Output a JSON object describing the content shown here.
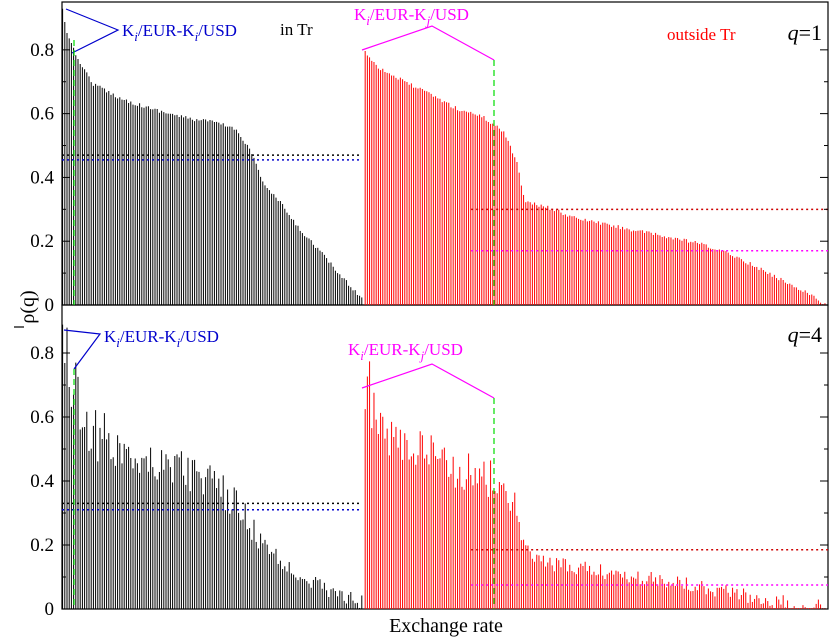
{
  "chart_data": [
    {
      "type": "bar",
      "panel": "top",
      "q_label": {
        "q": "q",
        "rest": "=1"
      },
      "ylabel": "ρ(q)",
      "xlabel": "",
      "ylim": [
        0,
        0.95
      ],
      "yticks": [
        0,
        0.2,
        0.4,
        0.6,
        0.8
      ],
      "ytick_labels": [
        "0",
        "0.2",
        "0.4",
        "0.6",
        "0.8"
      ],
      "series": [
        {
          "name": "in Tr",
          "color": "#000000",
          "x_range": [
            0,
            0.395
          ],
          "profile": [
            [
              0,
              0.93
            ],
            [
              0.02,
              0.84
            ],
            [
              0.05,
              0.78
            ],
            [
              0.1,
              0.7
            ],
            [
              0.2,
              0.65
            ],
            [
              0.3,
              0.62
            ],
            [
              0.42,
              0.59
            ],
            [
              0.5,
              0.58
            ],
            [
              0.57,
              0.56
            ],
            [
              0.62,
              0.5
            ],
            [
              0.67,
              0.38
            ],
            [
              0.72,
              0.33
            ],
            [
              0.78,
              0.25
            ],
            [
              0.85,
              0.18
            ],
            [
              0.92,
              0.1
            ],
            [
              1.0,
              0.02
            ]
          ],
          "mean_lines": [
            {
              "value": 0.47,
              "color": "#000000"
            },
            {
              "value": 0.455,
              "color": "#0000cc"
            }
          ]
        },
        {
          "name": "outside Tr",
          "color": "#ff0000",
          "x_range": [
            0.395,
            1.0
          ],
          "profile": [
            [
              0,
              0.8
            ],
            [
              0.03,
              0.75
            ],
            [
              0.08,
              0.71
            ],
            [
              0.15,
              0.66
            ],
            [
              0.2,
              0.62
            ],
            [
              0.25,
              0.6
            ],
            [
              0.3,
              0.55
            ],
            [
              0.33,
              0.45
            ],
            [
              0.345,
              0.33
            ],
            [
              0.4,
              0.31
            ],
            [
              0.45,
              0.28
            ],
            [
              0.55,
              0.25
            ],
            [
              0.65,
              0.22
            ],
            [
              0.72,
              0.2
            ],
            [
              0.8,
              0.16
            ],
            [
              0.88,
              0.1
            ],
            [
              0.95,
              0.05
            ],
            [
              1.0,
              0.005
            ]
          ],
          "mean_lines": [
            {
              "value": 0.3,
              "color": "#cc0000",
              "from": 0.23
            },
            {
              "value": 0.17,
              "color": "#ff00ff",
              "from": 0.23
            }
          ]
        }
      ],
      "annotations": [
        {
          "id": "blue",
          "text_main": "K",
          "sub1": "i",
          "mid": "/EUR-K",
          "sub2": "i",
          "tail": "/USD",
          "color": "#0000cc"
        },
        {
          "id": "magenta",
          "text_main": "K",
          "sub1": "i",
          "mid": "/EUR-K",
          "sub2": "j",
          "tail": "/USD",
          "color": "#ff00ff"
        },
        {
          "id": "in_tr",
          "text": "in Tr",
          "color": "#000000"
        },
        {
          "id": "outside_tr",
          "text": "outside Tr",
          "color": "#ff0000"
        }
      ]
    },
    {
      "type": "bar",
      "panel": "bottom",
      "q_label": {
        "q": "q",
        "rest": "=4"
      },
      "ylabel": "",
      "xlabel": "Exchange rate",
      "ylim": [
        0,
        0.95
      ],
      "yticks": [
        0,
        0.2,
        0.4,
        0.6,
        0.8
      ],
      "ytick_labels": [
        "0",
        "0.2",
        "0.4",
        "0.6",
        "0.8"
      ],
      "series": [
        {
          "name": "in Tr",
          "color": "#000000",
          "x_range": [
            0,
            0.395
          ],
          "profile": [
            [
              0,
              0.88
            ],
            [
              0.03,
              0.72
            ],
            [
              0.08,
              0.58
            ],
            [
              0.15,
              0.52
            ],
            [
              0.25,
              0.48
            ],
            [
              0.35,
              0.46
            ],
            [
              0.45,
              0.42
            ],
            [
              0.55,
              0.35
            ],
            [
              0.6,
              0.3
            ],
            [
              0.65,
              0.22
            ],
            [
              0.72,
              0.15
            ],
            [
              0.8,
              0.1
            ],
            [
              0.9,
              0.05
            ],
            [
              1.0,
              0.02
            ]
          ],
          "mean_lines": [
            {
              "value": 0.33,
              "color": "#000000"
            },
            {
              "value": 0.31,
              "color": "#0000cc"
            }
          ]
        },
        {
          "name": "outside Tr",
          "color": "#ff0000",
          "x_range": [
            0.395,
            1.0
          ],
          "profile": [
            [
              0,
              0.7
            ],
            [
              0.05,
              0.55
            ],
            [
              0.1,
              0.5
            ],
            [
              0.15,
              0.47
            ],
            [
              0.2,
              0.44
            ],
            [
              0.25,
              0.42
            ],
            [
              0.3,
              0.38
            ],
            [
              0.33,
              0.3
            ],
            [
              0.345,
              0.18
            ],
            [
              0.4,
              0.14
            ],
            [
              0.5,
              0.12
            ],
            [
              0.6,
              0.1
            ],
            [
              0.7,
              0.08
            ],
            [
              0.8,
              0.05
            ],
            [
              0.9,
              0.02
            ],
            [
              1.0,
              0.005
            ]
          ],
          "mean_lines": [
            {
              "value": 0.185,
              "color": "#cc0000",
              "from": 0.23
            },
            {
              "value": 0.075,
              "color": "#ff00ff",
              "from": 0.23
            }
          ]
        }
      ],
      "annotations": [
        {
          "id": "blue",
          "text_main": "K",
          "sub1": "i",
          "mid": "/EUR-K",
          "sub2": "i",
          "tail": "/USD",
          "color": "#0000cc"
        },
        {
          "id": "magenta",
          "text_main": "K",
          "sub1": "i",
          "mid": "/EUR-K",
          "sub2": "j",
          "tail": "/USD",
          "color": "#ff00ff"
        }
      ]
    }
  ],
  "colors": {
    "green_dashed": "#00dd00"
  }
}
